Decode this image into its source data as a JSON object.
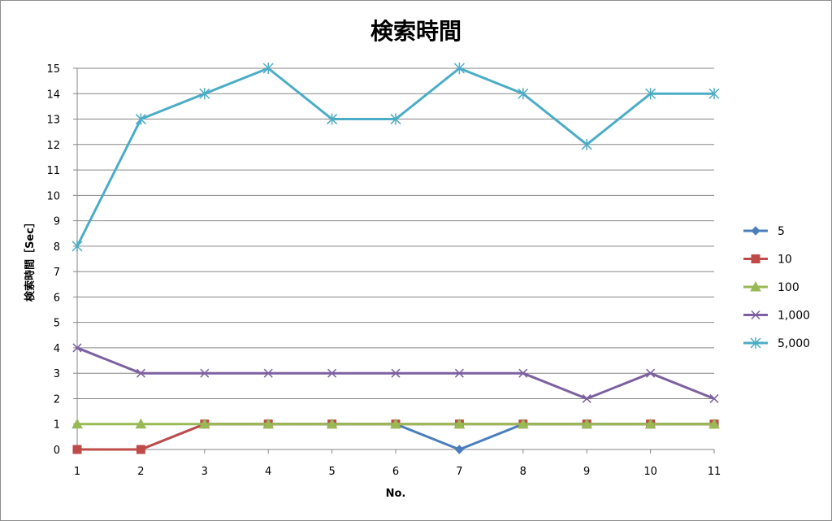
{
  "chart_data": {
    "type": "line",
    "title": "検索時間",
    "xlabel": "No.",
    "ylabel": "検索時間［Sec］",
    "categories": [
      "1",
      "2",
      "3",
      "4",
      "5",
      "6",
      "7",
      "8",
      "9",
      "10",
      "11"
    ],
    "ylim": [
      0,
      15
    ],
    "yticks": [
      "0",
      "1",
      "2",
      "3",
      "4",
      "5",
      "6",
      "7",
      "8",
      "9",
      "10",
      "11",
      "12",
      "13",
      "14",
      "15"
    ],
    "grid": true,
    "legend_position": "right",
    "series": [
      {
        "name": "5",
        "color": "#4a7ebb",
        "marker": "diamond",
        "values": [
          0,
          0,
          1,
          1,
          1,
          1,
          0,
          1,
          1,
          1,
          1
        ]
      },
      {
        "name": "10",
        "color": "#be4b48",
        "marker": "square",
        "values": [
          0,
          0,
          1,
          1,
          1,
          1,
          1,
          1,
          1,
          1,
          1
        ]
      },
      {
        "name": "100",
        "color": "#98b954",
        "marker": "triangle",
        "values": [
          1,
          1,
          1,
          1,
          1,
          1,
          1,
          1,
          1,
          1,
          1
        ]
      },
      {
        "name": "1,000",
        "color": "#7d60a0",
        "marker": "x",
        "values": [
          4,
          3,
          3,
          3,
          3,
          3,
          3,
          3,
          2,
          3,
          2
        ]
      },
      {
        "name": "5,000",
        "color": "#4bacc6",
        "marker": "star",
        "values": [
          8,
          13,
          14,
          15,
          13,
          13,
          15,
          14,
          12,
          14,
          14
        ]
      }
    ]
  }
}
